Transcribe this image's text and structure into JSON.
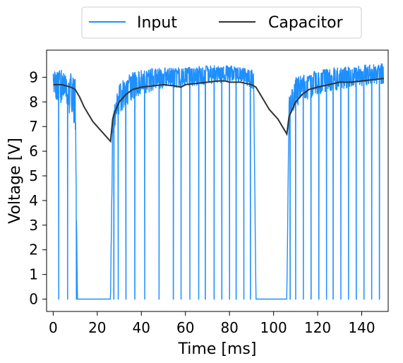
{
  "chart_data": {
    "type": "line",
    "title": "",
    "xlabel": "Time [ms]",
    "ylabel": "Voltage [V]",
    "xlim": [
      -3,
      152
    ],
    "ylim": [
      -0.5,
      10.1
    ],
    "xticks": [
      0,
      20,
      40,
      60,
      80,
      100,
      120,
      140
    ],
    "yticks": [
      0,
      1,
      2,
      3,
      4,
      5,
      6,
      7,
      8,
      9
    ],
    "grid": false,
    "legend_position": "top-center",
    "series": [
      {
        "name": "Input",
        "color": "#1f8fff",
        "description_of_behavior": "noisy high level between spikes, periodic dropouts to 0 V",
        "high_band": {
          "x": [
            0,
            5,
            10,
            11,
            26,
            27,
            30,
            35,
            40,
            50,
            60,
            70,
            80,
            85,
            91,
            92,
            106,
            107,
            110,
            120,
            130,
            140,
            150
          ],
          "lower": [
            7.8,
            8.0,
            7.0,
            0,
            0,
            6.5,
            7.5,
            8.0,
            8.3,
            8.5,
            8.6,
            8.7,
            8.8,
            8.8,
            8.5,
            0,
            0,
            7.2,
            7.8,
            8.3,
            8.5,
            8.6,
            8.7
          ],
          "upper": [
            9.3,
            9.3,
            9.2,
            0,
            0,
            7.5,
            8.8,
            9.2,
            9.3,
            9.4,
            9.4,
            9.5,
            9.5,
            9.4,
            9.3,
            0,
            0,
            8.2,
            9.0,
            9.3,
            9.4,
            9.5,
            9.6
          ]
        },
        "dropouts_x": [
          2.5,
          6.5,
          10.5,
          27.5,
          29.5,
          33,
          37,
          41.5,
          48,
          54.5,
          58,
          62,
          66,
          69,
          73,
          76.5,
          80,
          83,
          86.5,
          89.5,
          107.5,
          110,
          113.5,
          117,
          120.5,
          124,
          127,
          130.5,
          134,
          137.5,
          141,
          144.5,
          148
        ],
        "dropout_level": 0,
        "off_intervals": [
          [
            11,
            26
          ],
          [
            92,
            106
          ]
        ]
      },
      {
        "name": "Capacitor",
        "color": "#333333",
        "x": [
          0,
          2,
          4,
          6,
          8,
          10,
          12,
          14,
          16,
          18,
          20,
          22,
          24,
          26,
          27,
          28,
          30,
          33,
          36,
          40,
          45,
          50,
          55,
          58,
          60,
          65,
          70,
          75,
          78,
          80,
          85,
          90,
          92,
          94,
          96,
          98,
          100,
          102,
          104,
          106,
          107,
          108,
          110,
          113,
          116,
          120,
          125,
          130,
          135,
          140,
          145,
          150
        ],
        "y": [
          8.7,
          8.7,
          8.7,
          8.65,
          8.6,
          8.5,
          8.2,
          7.8,
          7.5,
          7.2,
          7.0,
          6.8,
          6.6,
          6.4,
          7.3,
          7.6,
          8.0,
          8.3,
          8.5,
          8.6,
          8.65,
          8.7,
          8.65,
          8.6,
          8.7,
          8.75,
          8.8,
          8.85,
          8.85,
          8.8,
          8.8,
          8.7,
          8.6,
          8.3,
          8.0,
          7.7,
          7.5,
          7.3,
          7.0,
          6.7,
          7.4,
          7.6,
          8.0,
          8.3,
          8.5,
          8.6,
          8.7,
          8.8,
          8.8,
          8.85,
          8.9,
          8.95
        ]
      }
    ]
  }
}
